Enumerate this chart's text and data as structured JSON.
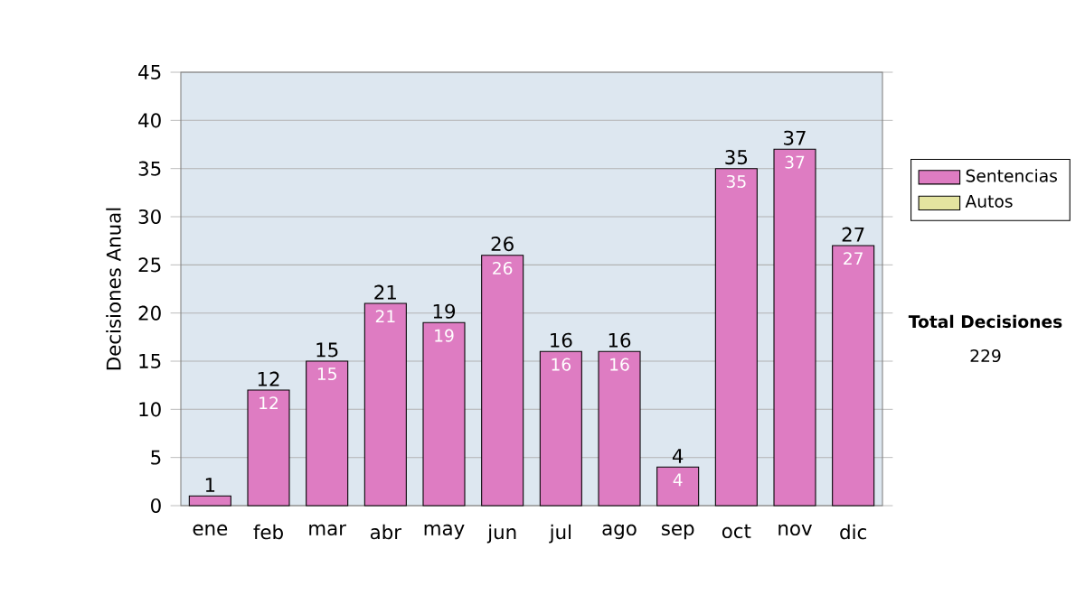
{
  "chart_data": {
    "type": "bar",
    "ylabel": "Decisiones Anual",
    "categories": [
      "ene",
      "feb",
      "mar",
      "abr",
      "may",
      "jun",
      "jul",
      "ago",
      "sep",
      "oct",
      "nov",
      "dic"
    ],
    "series": [
      {
        "name": "Sentencias",
        "color": "#de7cc2",
        "values": [
          1,
          12,
          15,
          21,
          19,
          26,
          16,
          16,
          4,
          35,
          37,
          27
        ],
        "value_labels": [
          null,
          "12",
          "15",
          "21",
          "19",
          "26",
          "16",
          "16",
          "4",
          "35",
          "37",
          "27"
        ]
      },
      {
        "name": "Autos",
        "color": "#e4e4a0",
        "values": [
          null,
          null,
          null,
          null,
          null,
          null,
          null,
          null,
          null,
          null,
          null,
          null
        ]
      }
    ],
    "stacked": true,
    "totals": [
      "1",
      "12",
      "15",
      "21",
      "19",
      "26",
      "16",
      "16",
      "4",
      "35",
      "37",
      "27"
    ],
    "ylim": [
      0,
      45
    ],
    "yticks": [
      0,
      5,
      10,
      15,
      20,
      25,
      30,
      35,
      40,
      45
    ],
    "grid": "y",
    "legend": "right",
    "annotations": [
      "**Total Decisiones**",
      "229"
    ]
  }
}
